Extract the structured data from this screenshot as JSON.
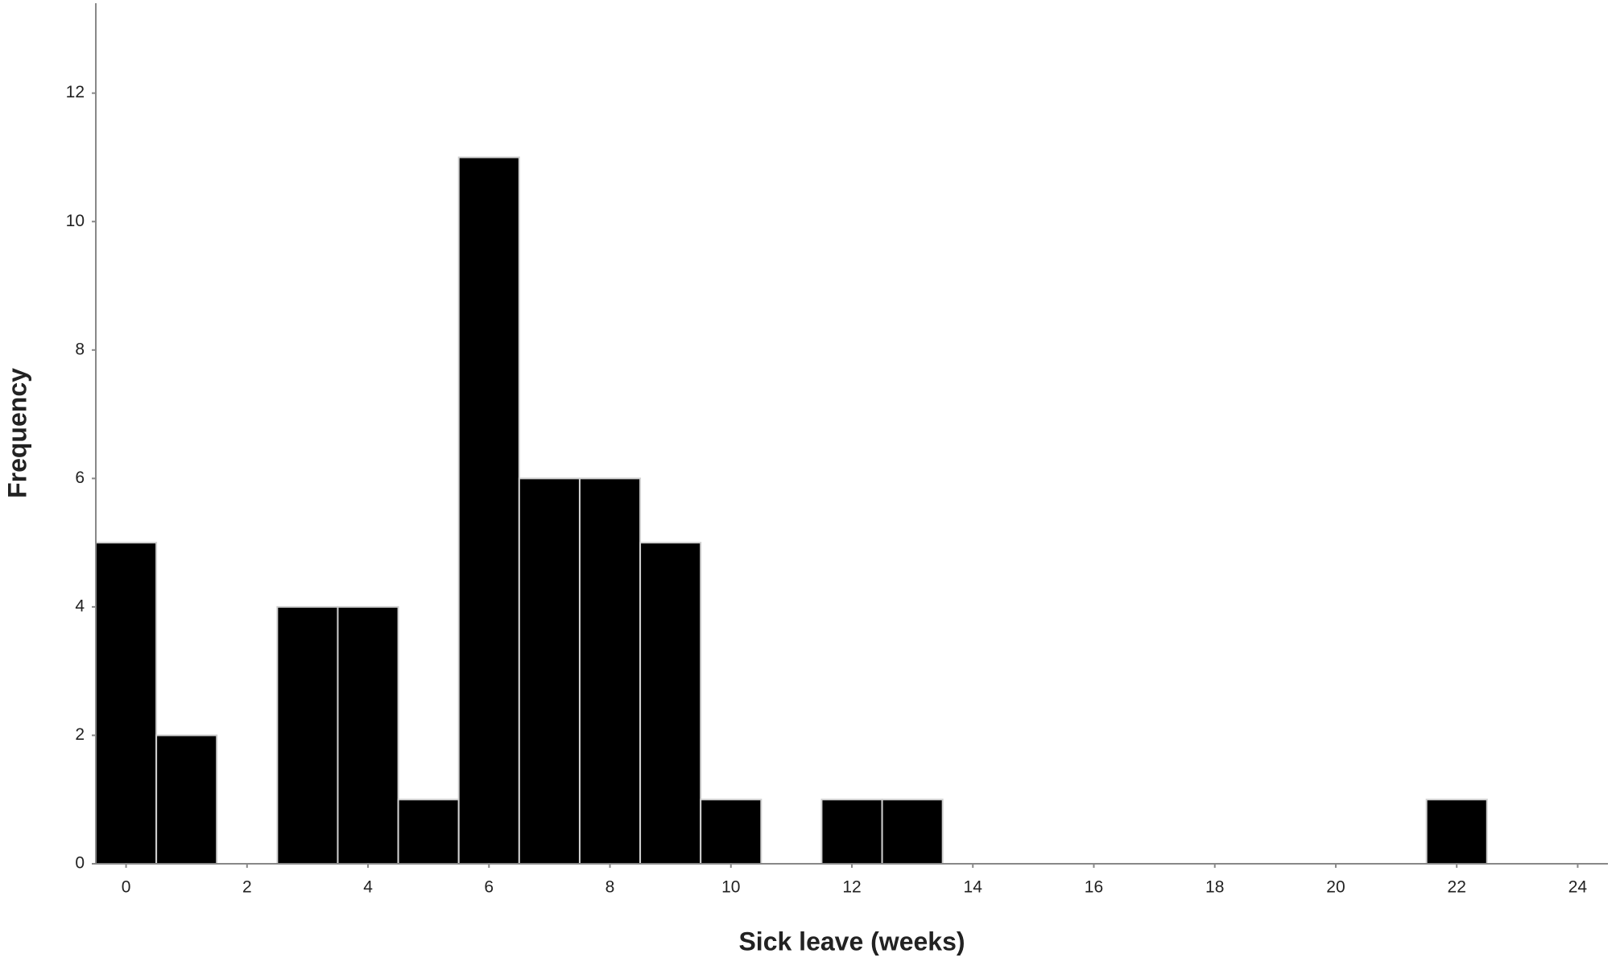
{
  "chart_data": {
    "type": "histogram",
    "x_label": "Sick leave (weeks)",
    "y_label": "Frequency",
    "bins": [
      -0.5,
      0.5,
      1.5,
      2.5,
      3.5,
      4.5,
      5.5,
      6.5,
      7.5,
      8.5,
      9.5,
      10.5,
      11.5,
      12.5,
      13.5,
      14.5,
      15.5,
      16.5,
      17.5,
      18.5,
      19.5,
      20.5,
      21.5,
      22.5
    ],
    "values": [
      5,
      2,
      0,
      4,
      4,
      1,
      11,
      6,
      6,
      5,
      1,
      0,
      1,
      1,
      0,
      0,
      0,
      0,
      0,
      0,
      0,
      0,
      1
    ],
    "color": "#000000",
    "xlim": [
      -0.5,
      24.5
    ],
    "xticks": [
      0,
      2,
      4,
      6,
      8,
      10,
      12,
      14,
      16,
      18,
      20,
      22,
      24
    ],
    "ylim": [
      0,
      13.4
    ],
    "yticks": [
      0,
      2,
      4,
      6,
      8,
      10,
      12
    ],
    "grid": false
  }
}
